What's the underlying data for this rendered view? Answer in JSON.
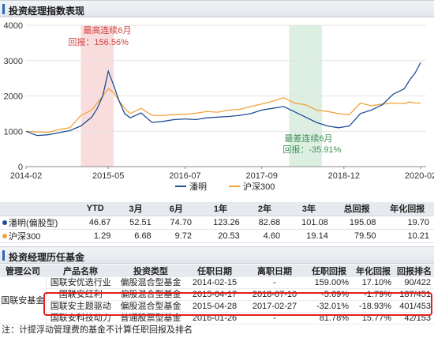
{
  "section1": {
    "title": "投资经理指数表现"
  },
  "section2": {
    "title": "投资经理历任基金"
  },
  "colors": {
    "manager": "#1f4e96",
    "index": "#f0a33b",
    "peak_band": "#f6cfcf",
    "trough_band": "#cfe8d4",
    "peak_text": "#d04040",
    "trough_text": "#3f8f5a"
  },
  "chart_data": {
    "type": "line",
    "title": "",
    "xlabel": "",
    "ylabel": "",
    "ylim": [
      0,
      4000
    ],
    "yticks": [
      "0",
      "1000",
      "2000",
      "3000",
      "4000"
    ],
    "xticks": [
      "2014-02",
      "2015-05",
      "2016-07",
      "2017-09",
      "2018-12",
      "2020-02"
    ],
    "xrange": [
      "2014-02",
      "2020-03"
    ],
    "annotations": [
      {
        "label": "最高连续6月",
        "value_label": "回报：156.56%",
        "band": [
          "2014-12",
          "2015-06"
        ]
      },
      {
        "label": "最差连续6月",
        "value_label": "回报：-35.91%",
        "band": [
          "2018-02",
          "2018-08"
        ]
      }
    ],
    "series": [
      {
        "name": "潘明",
        "points": [
          [
            "2014-02",
            1000
          ],
          [
            "2014-04",
            880
          ],
          [
            "2014-06",
            900
          ],
          [
            "2014-08",
            960
          ],
          [
            "2014-10",
            1020
          ],
          [
            "2014-12",
            1150
          ],
          [
            "2015-02",
            1400
          ],
          [
            "2015-03",
            1650
          ],
          [
            "2015-04",
            2000
          ],
          [
            "2015-05",
            2700
          ],
          [
            "2015-06",
            2300
          ],
          [
            "2015-07",
            1850
          ],
          [
            "2015-08",
            1500
          ],
          [
            "2015-09",
            1380
          ],
          [
            "2015-11",
            1520
          ],
          [
            "2016-01",
            1250
          ],
          [
            "2016-03",
            1280
          ],
          [
            "2016-05",
            1330
          ],
          [
            "2016-07",
            1350
          ],
          [
            "2016-09",
            1330
          ],
          [
            "2016-11",
            1380
          ],
          [
            "2017-01",
            1400
          ],
          [
            "2017-03",
            1420
          ],
          [
            "2017-05",
            1450
          ],
          [
            "2017-07",
            1500
          ],
          [
            "2017-09",
            1600
          ],
          [
            "2017-11",
            1650
          ],
          [
            "2018-01",
            1700
          ],
          [
            "2018-03",
            1550
          ],
          [
            "2018-05",
            1400
          ],
          [
            "2018-07",
            1250
          ],
          [
            "2018-09",
            1150
          ],
          [
            "2018-11",
            1100
          ],
          [
            "2019-01",
            1150
          ],
          [
            "2019-03",
            1500
          ],
          [
            "2019-05",
            1600
          ],
          [
            "2019-07",
            1750
          ],
          [
            "2019-09",
            2050
          ],
          [
            "2019-11",
            2200
          ],
          [
            "2019-12",
            2450
          ],
          [
            "2020-01",
            2650
          ],
          [
            "2020-02",
            2950
          ]
        ]
      },
      {
        "name": "沪深300",
        "points": [
          [
            "2014-02",
            1000
          ],
          [
            "2014-04",
            980
          ],
          [
            "2014-06",
            970
          ],
          [
            "2014-08",
            1050
          ],
          [
            "2014-10",
            1100
          ],
          [
            "2014-12",
            1450
          ],
          [
            "2015-02",
            1600
          ],
          [
            "2015-04",
            2000
          ],
          [
            "2015-05",
            2200
          ],
          [
            "2015-06",
            2100
          ],
          [
            "2015-07",
            1850
          ],
          [
            "2015-08",
            1650
          ],
          [
            "2015-09",
            1500
          ],
          [
            "2015-11",
            1650
          ],
          [
            "2016-01",
            1450
          ],
          [
            "2016-03",
            1450
          ],
          [
            "2016-05",
            1470
          ],
          [
            "2016-07",
            1480
          ],
          [
            "2016-09",
            1510
          ],
          [
            "2016-11",
            1560
          ],
          [
            "2017-01",
            1540
          ],
          [
            "2017-03",
            1600
          ],
          [
            "2017-05",
            1620
          ],
          [
            "2017-07",
            1700
          ],
          [
            "2017-09",
            1770
          ],
          [
            "2017-11",
            1850
          ],
          [
            "2018-01",
            1950
          ],
          [
            "2018-03",
            1800
          ],
          [
            "2018-05",
            1750
          ],
          [
            "2018-07",
            1600
          ],
          [
            "2018-09",
            1560
          ],
          [
            "2018-11",
            1500
          ],
          [
            "2019-01",
            1470
          ],
          [
            "2019-03",
            1800
          ],
          [
            "2019-05",
            1720
          ],
          [
            "2019-07",
            1770
          ],
          [
            "2019-09",
            1800
          ],
          [
            "2019-11",
            1780
          ],
          [
            "2019-12",
            1830
          ],
          [
            "2020-01",
            1800
          ],
          [
            "2020-02",
            1800
          ]
        ]
      }
    ]
  },
  "summary": {
    "headers": [
      "",
      "YTD",
      "3月",
      "6月",
      "1年",
      "2年",
      "3年",
      "总回报",
      "年化回报"
    ],
    "rows": [
      {
        "name": "潘明(偏股型)",
        "values": [
          "46.67",
          "52.51",
          "74.70",
          "123.26",
          "82.68",
          "101.08",
          "195.08",
          "19.70"
        ]
      },
      {
        "name": "沪深300",
        "values": [
          "1.29",
          "6.68",
          "9.72",
          "20.53",
          "4.60",
          "19.14",
          "79.50",
          "10.21"
        ]
      }
    ]
  },
  "history": {
    "headers": [
      "管理公司",
      "产品名称",
      "投资类型",
      "任职日期",
      "离职日期",
      "任职回报",
      "年化回报",
      "回报排名"
    ],
    "company": "国联安基金",
    "rows": [
      [
        "国联安优选行业",
        "偏股混合型基金",
        "2014-02-15",
        "-",
        "159.00%",
        "17.10%",
        "90/422"
      ],
      [
        "国联安红利",
        "偏股混合型基金",
        "2015-04-17",
        "2018-07-10",
        "-5.69%",
        "-1.79%",
        "187/451"
      ],
      [
        "国联安主题驱动",
        "偏股混合型基金",
        "2015-04-28",
        "2017-02-27",
        "-32.01%",
        "-18.93%",
        "401/453"
      ],
      [
        "国联安科技动力",
        "普通股票型基金",
        "2016-01-26",
        "-",
        "81.78%",
        "15.77%",
        "42/153"
      ]
    ]
  },
  "footnote": "注：计提浮动管理费的基金不计算任职回报及排名"
}
